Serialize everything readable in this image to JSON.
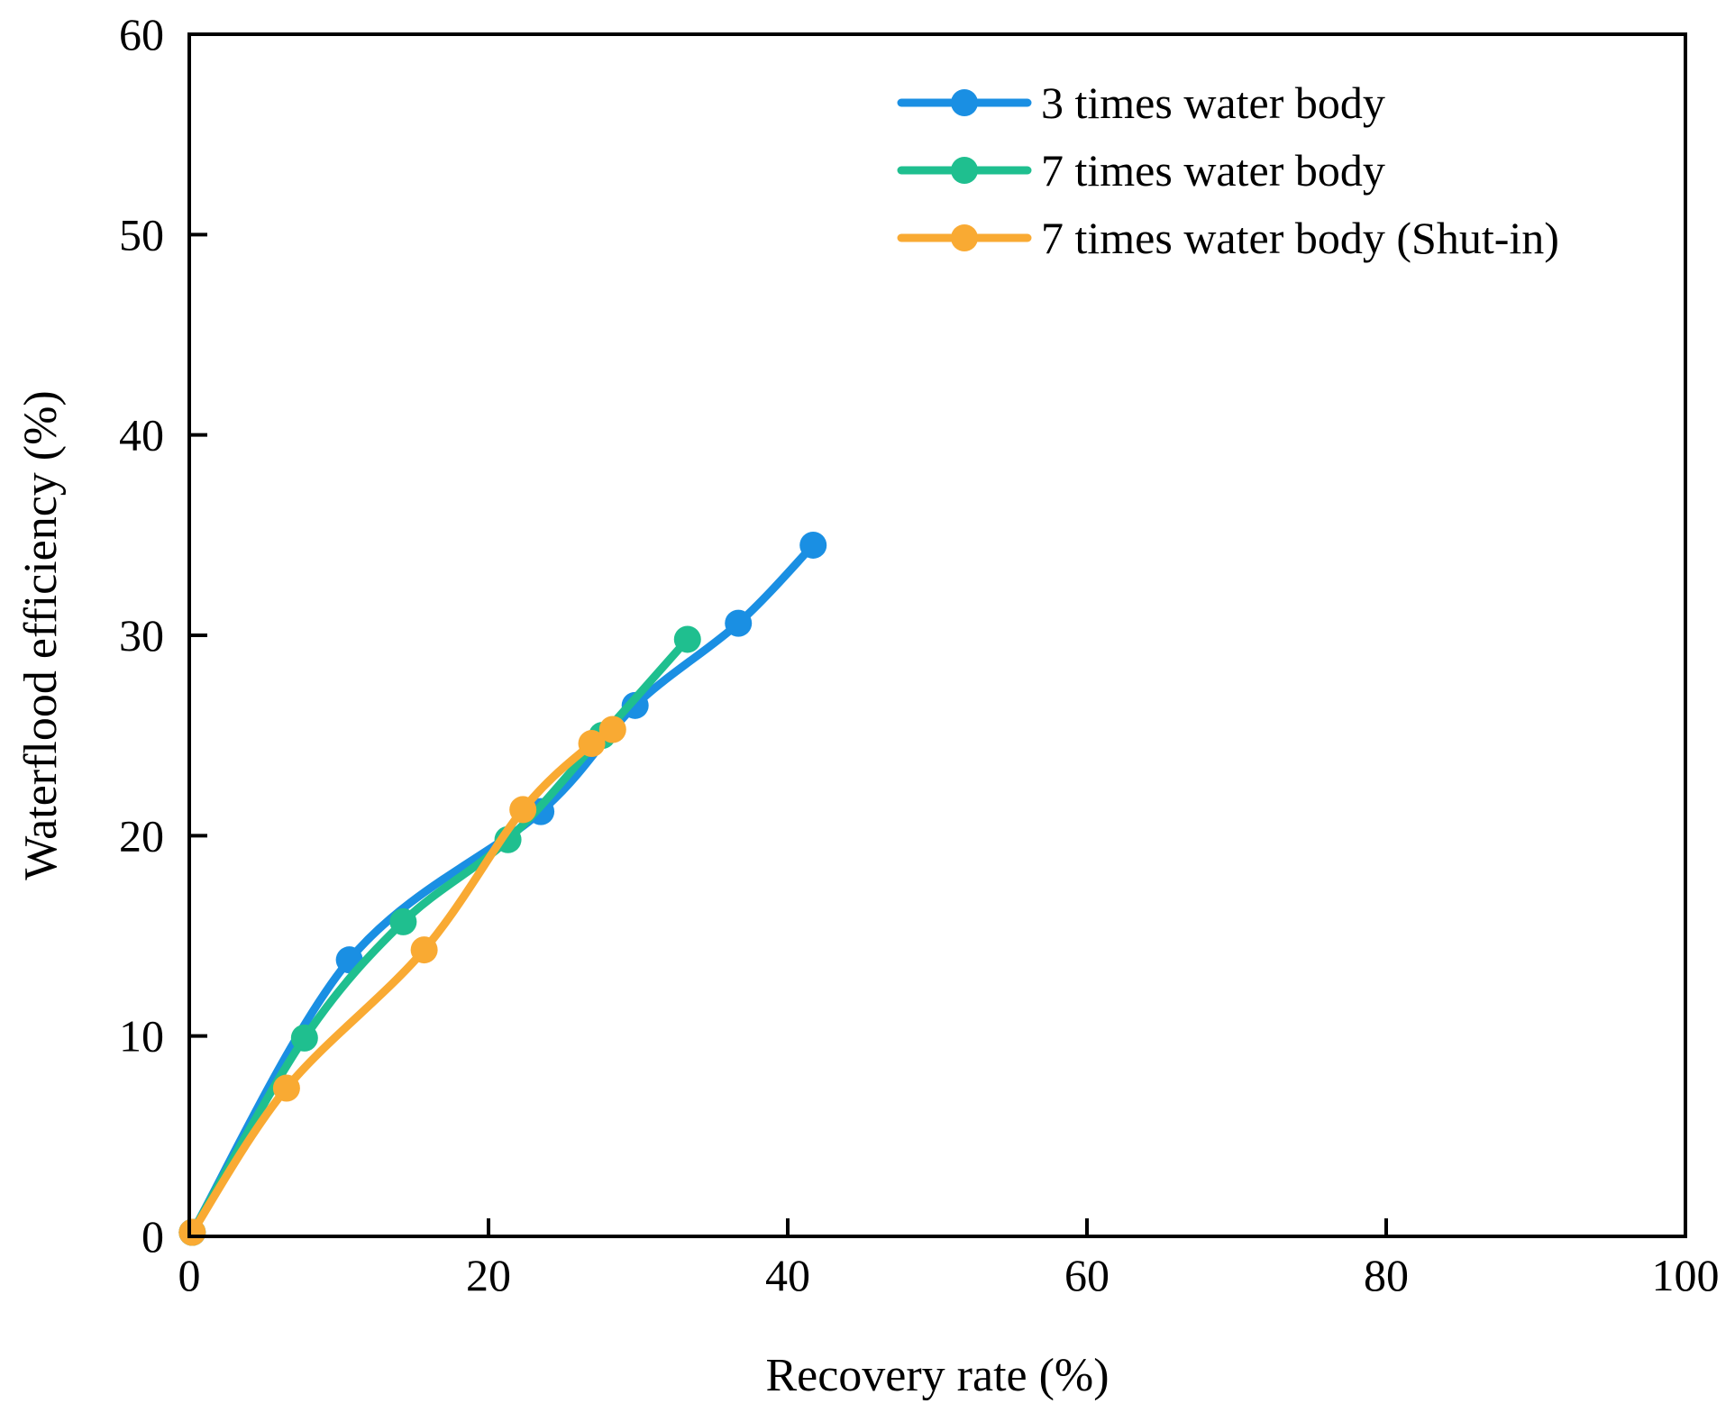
{
  "chart_data": {
    "type": "line",
    "title": "",
    "xlabel": "Recovery rate (%)",
    "ylabel": "Waterflood efficiency (%)",
    "xlim": [
      0,
      100
    ],
    "ylim": [
      0,
      60
    ],
    "xticks": [
      0,
      20,
      40,
      60,
      80,
      100
    ],
    "yticks": [
      0,
      10,
      20,
      30,
      40,
      50,
      60
    ],
    "xtick_labels": [
      "0",
      "20",
      "40",
      "60",
      "80",
      "100"
    ],
    "ytick_labels": [
      "0",
      "10",
      "20",
      "30",
      "40",
      "50",
      "60"
    ],
    "grid": false,
    "legend_position": "top-right",
    "series": [
      {
        "name": "3 times water body",
        "color": "#1a8fe3",
        "x": [
          0.2,
          10.7,
          23.5,
          29.8,
          36.7,
          41.7
        ],
        "y": [
          0.2,
          13.8,
          21.2,
          26.5,
          30.6,
          34.5
        ]
      },
      {
        "name": "7 times water body",
        "color": "#1fbf8f",
        "x": [
          0.2,
          7.7,
          14.3,
          21.3,
          27.6,
          33.3
        ],
        "y": [
          0.2,
          9.9,
          15.7,
          19.8,
          25.0,
          29.8
        ]
      },
      {
        "name": "7 times water body (Shut-in)",
        "color": "#f9aa33",
        "x": [
          0.2,
          6.5,
          15.7,
          22.3,
          26.9,
          28.3
        ],
        "y": [
          0.2,
          7.4,
          14.3,
          21.3,
          24.6,
          25.3
        ]
      }
    ]
  }
}
